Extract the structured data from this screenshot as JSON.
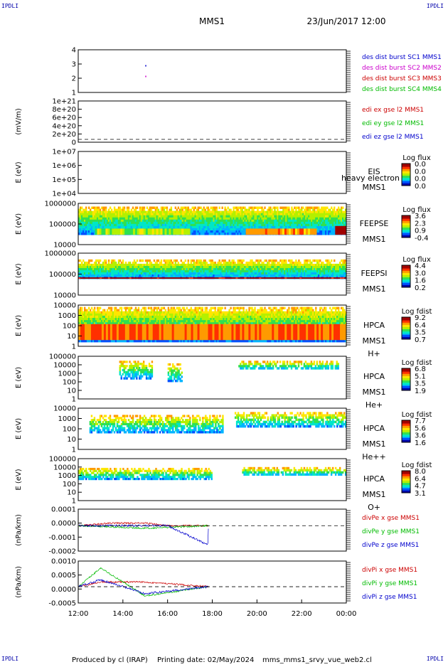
{
  "corner_tag": "IPDLI",
  "header": {
    "title": "MMS1",
    "date": "23/Jun/2017 12:00"
  },
  "footer": {
    "produced": "Produced by  cl (IRAP)",
    "printing": "Printing date: 02/May/2024",
    "file": "mms_mms1_srvy_vue_web2.cl"
  },
  "time_axis": {
    "ticks": [
      "12:00",
      "14:00",
      "16:00",
      "18:00",
      "20:00",
      "22:00",
      "00:00"
    ]
  },
  "panels": [
    {
      "id": "burst",
      "type": "markers",
      "ylabel": "",
      "yticks": [
        "4",
        "3",
        "2",
        "1"
      ],
      "legend": [
        {
          "text": "des dist burst SC1 MMS1",
          "color": "#0000cc"
        },
        {
          "text": "des dist burst SC2 MMS2",
          "color": "#cc00cc"
        },
        {
          "text": "des dist burst SC3 MMS3",
          "color": "#cc0000"
        },
        {
          "text": "des dist burst SC4 MMS4",
          "color": "#00bb00"
        }
      ]
    },
    {
      "id": "edi",
      "type": "line",
      "ylabel": "(mV/m)",
      "yticks": [
        "1e+21",
        "8e+20",
        "6e+20",
        "4e+20",
        "2e+20",
        "0"
      ],
      "legend": [
        {
          "text": "edi ex gse l2 MMS1",
          "color": "#cc0000"
        },
        {
          "text": "edi ey gse l2 MMS1",
          "color": "#00bb00"
        },
        {
          "text": "edi ez gse l2 MMS1",
          "color": "#0000cc"
        }
      ]
    },
    {
      "id": "eis",
      "type": "spectrogram",
      "ylabel": "E (eV)",
      "yticks": [
        "1e+07",
        "1e+06",
        "1e+05",
        "1e+04"
      ],
      "labels": [
        "EIS",
        "MMS1"
      ],
      "overlay": "heavy electron to",
      "cbar_title": "Log flux",
      "cbar_ticks": [
        "0.0",
        "0.0",
        "0.0",
        "0.0"
      ]
    },
    {
      "id": "feepse",
      "type": "spectrogram",
      "ylabel": "E (eV)",
      "yticks": [
        "1000000",
        "100000",
        "10000"
      ],
      "labels": [
        "FEEPSE",
        "MMS1"
      ],
      "cbar_title": "Log flux",
      "cbar_ticks": [
        "3.6",
        "2.3",
        "0.9",
        "-0.4"
      ]
    },
    {
      "id": "feepsi",
      "type": "spectrogram",
      "ylabel": "E (eV)",
      "yticks": [
        "1000000",
        "100000",
        "10000"
      ],
      "labels": [
        "FEEPSI",
        "MMS1"
      ],
      "cbar_title": "Log flux",
      "cbar_ticks": [
        "4.4",
        "3.0",
        "1.6",
        "0.2"
      ]
    },
    {
      "id": "hpca_h",
      "type": "spectrogram",
      "ylabel": "E (eV)",
      "yticks": [
        "10000",
        "1000",
        "100",
        "10",
        "1"
      ],
      "labels": [
        "HPCA",
        "MMS1",
        "H+"
      ],
      "cbar_title": "Log fdist",
      "cbar_ticks": [
        "9.2",
        "6.4",
        "3.5",
        "0.7"
      ]
    },
    {
      "id": "hpca_he",
      "type": "spectrogram",
      "ylabel": "E (eV)",
      "yticks": [
        "100000",
        "10000",
        "1000",
        "100",
        "10",
        "1"
      ],
      "labels": [
        "HPCA",
        "MMS1",
        "He+"
      ],
      "cbar_title": "Log fdist",
      "cbar_ticks": [
        "6.8",
        "5.1",
        "3.5",
        "1.9"
      ]
    },
    {
      "id": "hpca_hepp",
      "type": "spectrogram",
      "ylabel": "E (eV)",
      "yticks": [
        "10000",
        "1000",
        "100",
        "10",
        "1"
      ],
      "labels": [
        "HPCA",
        "MMS1",
        "He++"
      ],
      "cbar_title": "Log fdist",
      "cbar_ticks": [
        "7.7",
        "5.6",
        "3.6",
        "1.6"
      ]
    },
    {
      "id": "hpca_o",
      "type": "spectrogram",
      "ylabel": "E (eV)",
      "yticks": [
        "100000",
        "10000",
        "1000",
        "100",
        "10",
        "1"
      ],
      "labels": [
        "HPCA",
        "MMS1",
        "O+"
      ],
      "cbar_title": "Log fdist",
      "cbar_ticks": [
        "8.0",
        "6.4",
        "4.7",
        "3.1"
      ]
    },
    {
      "id": "divpe",
      "type": "line",
      "ylabel": "(nPa/km)",
      "yticks": [
        "0.0001",
        "0.0000",
        "-0.0001",
        "-0.0002"
      ],
      "legend": [
        {
          "text": "divPe x gse MMS1",
          "color": "#cc0000"
        },
        {
          "text": "divPe y gse MMS1",
          "color": "#00bb00"
        },
        {
          "text": "divPe z gse MMS1",
          "color": "#0000cc"
        }
      ]
    },
    {
      "id": "divpi",
      "type": "line",
      "ylabel": "(nPa/km)",
      "yticks": [
        "0.0010",
        "0.0005",
        "0.0000",
        "-0.0005"
      ],
      "legend": [
        {
          "text": "divPi x gse MMS1",
          "color": "#cc0000"
        },
        {
          "text": "divPi y gse MMS1",
          "color": "#00bb00"
        },
        {
          "text": "divPi z gse MMS1",
          "color": "#0000cc"
        }
      ]
    }
  ],
  "chart_data": [
    {
      "type": "scatter",
      "title": "des dist burst",
      "x_range": [
        "12:00",
        "00:00"
      ],
      "ylim": [
        0.5,
        4.5
      ],
      "series": [
        {
          "name": "des dist burst SC1 MMS1",
          "values": [
            {
              "x": "15:00",
              "y": 3
            }
          ]
        },
        {
          "name": "des dist burst SC2 MMS2",
          "values": [
            {
              "x": "15:00",
              "y": 2
            }
          ]
        },
        {
          "name": "des dist burst SC3 MMS3",
          "values": []
        },
        {
          "name": "des dist burst SC4 MMS4",
          "values": []
        }
      ]
    },
    {
      "type": "line",
      "ylabel": "(mV/m)",
      "ylim": [
        0,
        1e+21
      ],
      "series": [
        {
          "name": "edi ex gse l2 MMS1",
          "values": []
        },
        {
          "name": "edi ey gse l2 MMS1",
          "values": []
        },
        {
          "name": "edi ez gse l2 MMS1",
          "values": []
        }
      ]
    },
    {
      "type": "heatmap",
      "label": "EIS",
      "ylabel": "E (eV)",
      "ylim": [
        10000.0,
        10000000.0
      ],
      "yscale": "log",
      "colorbar": [
        0.0,
        0.0
      ],
      "coverage": []
    },
    {
      "type": "heatmap",
      "label": "FEEPSE",
      "ylabel": "E (eV)",
      "ylim": [
        10000.0,
        1000000.0
      ],
      "yscale": "log",
      "colorbar": [
        -0.4,
        3.6
      ],
      "coverage": [
        {
          "start": "12:00",
          "end": "00:00",
          "emin": 30000,
          "emax": 700000
        }
      ],
      "enhancements": [
        {
          "start": "12:45",
          "end": "17:00",
          "emin": 30000,
          "emax": 60000,
          "level": 1.8
        },
        {
          "start": "19:30",
          "end": "22:40",
          "emin": 30000,
          "emax": 60000,
          "level": 2.6
        },
        {
          "start": "23:30",
          "end": "00:00",
          "emin": 30000,
          "emax": 80000,
          "level": 3.5
        }
      ]
    },
    {
      "type": "heatmap",
      "label": "FEEPSI",
      "ylabel": "E (eV)",
      "ylim": [
        10000.0,
        1000000.0
      ],
      "yscale": "log",
      "colorbar": [
        0.2,
        4.4
      ],
      "coverage": [
        {
          "start": "12:00",
          "end": "00:00",
          "emin": 60000,
          "emax": 500000
        }
      ],
      "enhancements": [
        {
          "start": "12:00",
          "end": "00:00",
          "emin": 60000,
          "emax": 70000,
          "level": 4.3
        }
      ]
    },
    {
      "type": "heatmap",
      "label": "HPCA H+",
      "ylabel": "E (eV)",
      "ylim": [
        1,
        40000
      ],
      "yscale": "log",
      "colorbar": [
        0.7,
        9.2
      ],
      "coverage": [
        {
          "start": "12:00",
          "end": "00:00",
          "emin": 3,
          "emax": 25000
        }
      ],
      "enhancements": [
        {
          "start": "12:00",
          "end": "00:00",
          "emin": 5,
          "emax": 300,
          "level": 7.5
        }
      ]
    },
    {
      "type": "heatmap",
      "label": "HPCA He+",
      "ylabel": "E (eV)",
      "ylim": [
        1,
        100000
      ],
      "yscale": "log",
      "colorbar": [
        1.9,
        6.8
      ],
      "coverage": [
        {
          "start": "13:50",
          "end": "15:20",
          "emin": 200,
          "emax": 30000
        },
        {
          "start": "16:00",
          "end": "16:40",
          "emin": 100,
          "emax": 15000
        },
        {
          "start": "19:10",
          "end": "23:40",
          "emin": 3000,
          "emax": 30000
        }
      ]
    },
    {
      "type": "heatmap",
      "label": "HPCA He++",
      "ylabel": "E (eV)",
      "ylim": [
        1,
        20000
      ],
      "yscale": "log",
      "colorbar": [
        1.6,
        7.7
      ],
      "coverage": [
        {
          "start": "12:30",
          "end": "18:30",
          "emin": 50,
          "emax": 4000
        },
        {
          "start": "19:00",
          "end": "00:00",
          "emin": 200,
          "emax": 8000
        }
      ]
    },
    {
      "type": "heatmap",
      "label": "HPCA O+",
      "ylabel": "E (eV)",
      "ylim": [
        1,
        100000
      ],
      "yscale": "log",
      "colorbar": [
        3.1,
        8.0
      ],
      "coverage": [
        {
          "start": "12:00",
          "end": "18:00",
          "emin": 300,
          "emax": 8000
        },
        {
          "start": "19:20",
          "end": "00:00",
          "emin": 1000,
          "emax": 10000
        }
      ]
    },
    {
      "type": "line",
      "ylabel": "(nPa/km)",
      "ylim": [
        -0.0002,
        0.00013
      ],
      "x_range": [
        "12:00",
        "17:50"
      ],
      "series": [
        {
          "name": "divPe x gse MMS1",
          "values": [
            [
              12.0,
              0.0
            ],
            [
              13.5,
              2e-05
            ],
            [
              15.0,
              2e-05
            ],
            [
              16.0,
              0.0
            ],
            [
              17.83,
              0.0
            ]
          ]
        },
        {
          "name": "divPe y gse MMS1",
          "values": [
            [
              12.0,
              0.0
            ],
            [
              13.5,
              -1e-05
            ],
            [
              15.0,
              -2e-05
            ],
            [
              16.5,
              -1e-05
            ],
            [
              17.83,
              0.0
            ]
          ]
        },
        {
          "name": "divPe z gse MMS1",
          "values": [
            [
              12.0,
              0.0
            ],
            [
              14.0,
              0.0
            ],
            [
              16.0,
              0.0
            ],
            [
              17.8,
              -0.00015
            ],
            [
              17.83,
              0.0
            ]
          ]
        }
      ]
    },
    {
      "type": "line",
      "ylabel": "(nPa/km)",
      "ylim": [
        -0.0007,
        0.0011
      ],
      "x_range": [
        "12:00",
        "17:50"
      ],
      "series": [
        {
          "name": "divPi x gse MMS1",
          "values": [
            [
              12.0,
              0.0
            ],
            [
              13.0,
              0.0002
            ],
            [
              15.0,
              0.0002
            ],
            [
              17.83,
              0.0
            ]
          ]
        },
        {
          "name": "divPi y gse MMS1",
          "values": [
            [
              12.0,
              0.0
            ],
            [
              13.0,
              0.0008
            ],
            [
              15.0,
              -0.0004
            ],
            [
              17.83,
              0.0
            ]
          ]
        },
        {
          "name": "divPi z gse MMS1",
          "values": [
            [
              12.0,
              0.0
            ],
            [
              13.0,
              0.0003
            ],
            [
              15.0,
              -0.0003
            ],
            [
              17.83,
              0.0
            ]
          ]
        }
      ]
    }
  ]
}
